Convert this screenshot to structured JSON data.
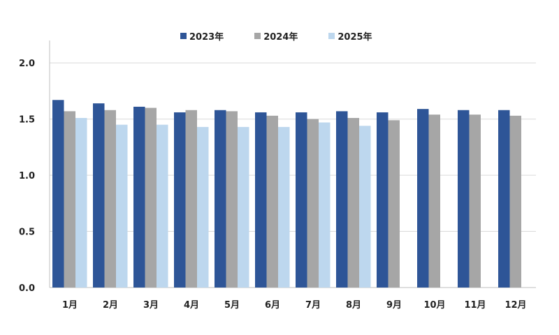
{
  "chart_data": {
    "type": "bar",
    "categories": [
      "1月",
      "2月",
      "3月",
      "4月",
      "5月",
      "6月",
      "7月",
      "8月",
      "9月",
      "10月",
      "11月",
      "12月"
    ],
    "series": [
      {
        "name": "2023年",
        "color": "#2e5597",
        "values": [
          1.67,
          1.64,
          1.61,
          1.56,
          1.58,
          1.56,
          1.56,
          1.57,
          1.56,
          1.59,
          1.58,
          1.58
        ]
      },
      {
        "name": "2024年",
        "color": "#a6a6a6",
        "values": [
          1.57,
          1.58,
          1.6,
          1.58,
          1.57,
          1.53,
          1.5,
          1.51,
          1.49,
          1.54,
          1.54,
          1.53
        ]
      },
      {
        "name": "2025年",
        "color": "#bdd7ee",
        "values": [
          1.51,
          1.45,
          1.45,
          1.43,
          1.43,
          1.43,
          1.47,
          1.44,
          null,
          null,
          null,
          null
        ]
      }
    ],
    "yticks": [
      "0.0",
      "0.5",
      "1.0",
      "1.5",
      "2.0"
    ],
    "ylim": [
      0,
      2.2
    ],
    "grid": true,
    "legend_position": "top-center"
  }
}
